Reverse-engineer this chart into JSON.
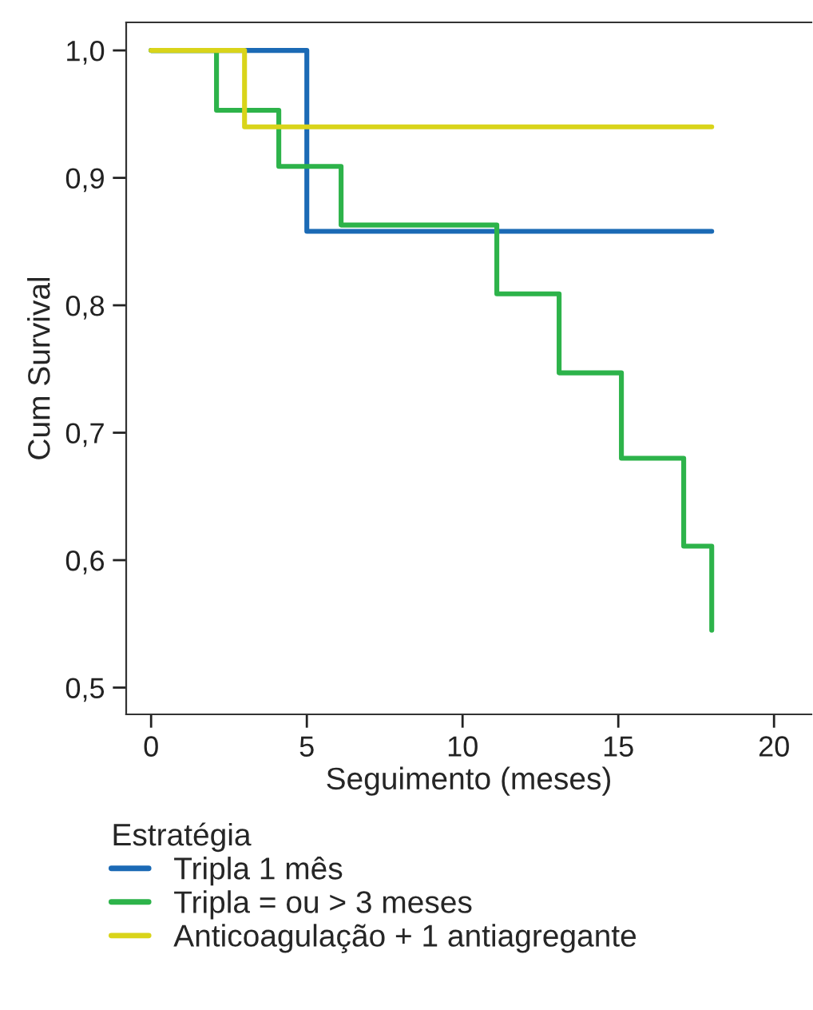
{
  "chart_data": {
    "type": "step",
    "xlabel": "Seguimento (meses)",
    "ylabel": "Cum Survival",
    "legend_title": "Estratégia",
    "xlim": [
      -0.8,
      21.2
    ],
    "ylim": [
      0.479,
      1.022
    ],
    "xticks": [
      0,
      5,
      10,
      15,
      20
    ],
    "yticks": [
      {
        "value": 0.5,
        "label": "0,5"
      },
      {
        "value": 0.6,
        "label": "0,6"
      },
      {
        "value": 0.7,
        "label": "0,7"
      },
      {
        "value": 0.8,
        "label": "0,8"
      },
      {
        "value": 0.9,
        "label": "0,9"
      },
      {
        "value": 1.0,
        "label": "1,0"
      }
    ],
    "grid": false,
    "legend": "bottom",
    "series": [
      {
        "name": "Tripla 1 mês",
        "color": "#1b6ab5",
        "x": [
          0,
          5,
          18
        ],
        "values": [
          1.0,
          0.858,
          0.858
        ]
      },
      {
        "name": "Tripla = ou > 3 meses",
        "color": "#2db34a",
        "x": [
          0,
          2.1,
          4.1,
          6.1,
          11.1,
          13.1,
          15.1,
          17.1,
          18
        ],
        "values": [
          1.0,
          0.953,
          0.909,
          0.863,
          0.809,
          0.747,
          0.68,
          0.611,
          0.545
        ]
      },
      {
        "name": "Anticoagulação + 1 antiagregante",
        "color": "#d9d41a",
        "x": [
          0,
          3,
          18
        ],
        "values": [
          1.0,
          0.94,
          0.94
        ]
      }
    ]
  }
}
